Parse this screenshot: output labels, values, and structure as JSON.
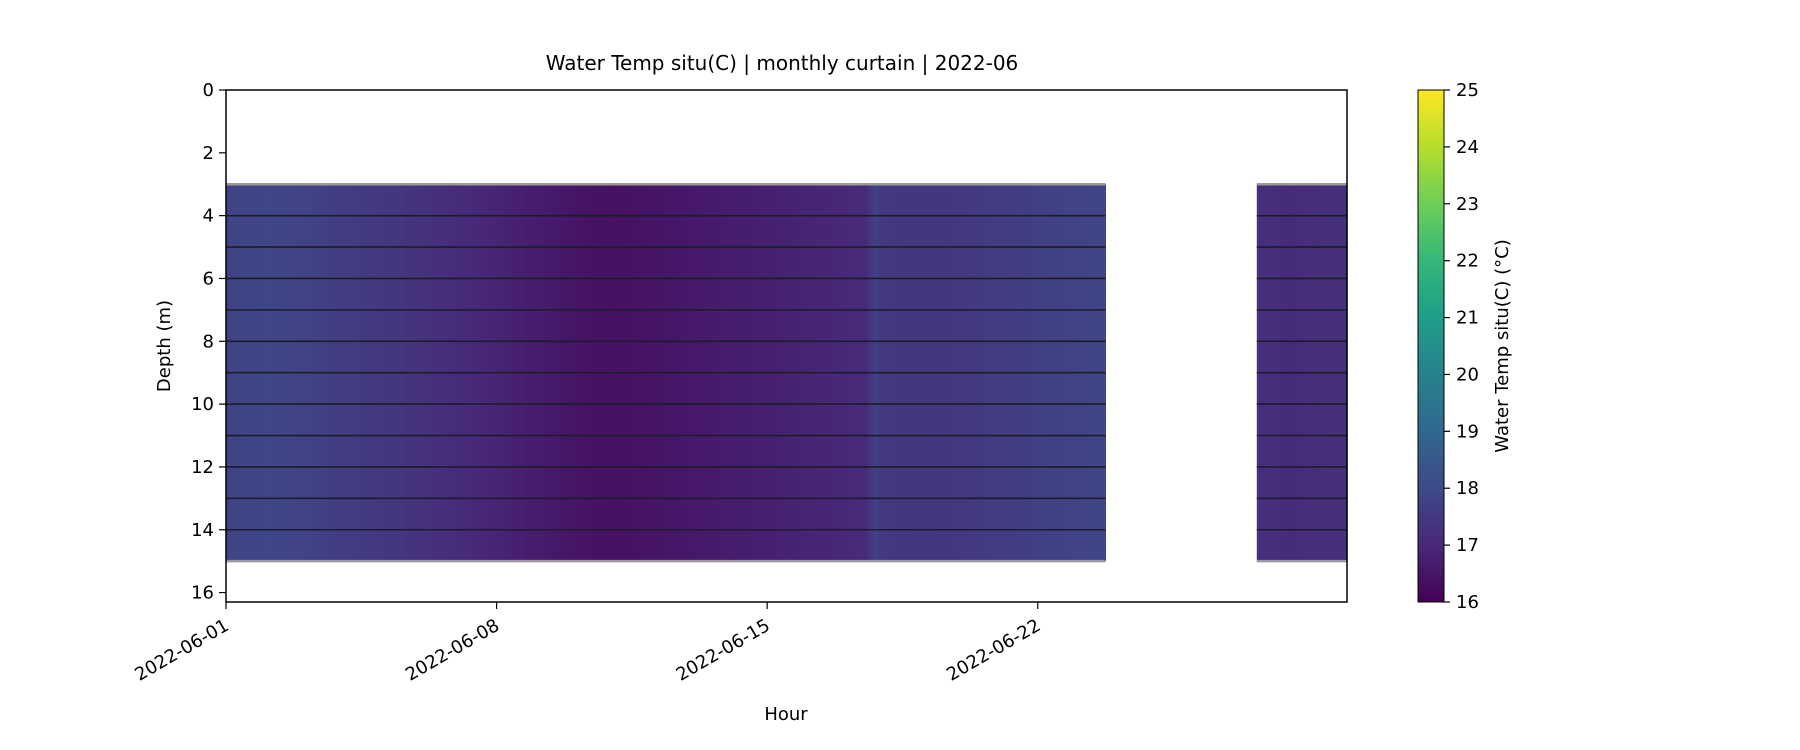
{
  "chart_data": {
    "type": "heatmap",
    "title": "Water Temp situ(C) | monthly curtain | 2022-06",
    "xlabel": "Hour",
    "ylabel": "Depth (m)",
    "xlim": [
      "2022-06-01T00:00",
      "2022-06-30T00:00"
    ],
    "ylim": [
      16.3,
      0
    ],
    "x_ticks": [
      "2022-06-01",
      "2022-06-08",
      "2022-06-15",
      "2022-06-22"
    ],
    "y_ticks": [
      0,
      2,
      4,
      6,
      8,
      10,
      12,
      14,
      16
    ],
    "colorbar": {
      "label": "Water Temp situ(C) (°C)",
      "range": [
        16,
        25
      ],
      "ticks": [
        16,
        17,
        18,
        19,
        20,
        21,
        22,
        23,
        24,
        25
      ],
      "colormap": "viridis"
    },
    "depth_range_m": [
      3,
      15
    ],
    "sensor_depths_m": [
      3,
      4,
      5,
      6,
      7,
      8,
      9,
      10,
      11,
      12,
      13,
      14,
      15
    ],
    "data_segments": [
      {
        "start": "2022-06-01T00:00",
        "end": "2022-06-23T18:00"
      },
      {
        "start": "2022-06-27T16:00",
        "end": "2022-06-30T00:00"
      }
    ],
    "temperature_profile": [
      {
        "date": "2022-06-01T00:00",
        "value": 17.8
      },
      {
        "date": "2022-06-02T00:00",
        "value": 17.9
      },
      {
        "date": "2022-06-03T00:00",
        "value": 17.8
      },
      {
        "date": "2022-06-04T00:00",
        "value": 17.6
      },
      {
        "date": "2022-06-05T00:00",
        "value": 17.5
      },
      {
        "date": "2022-06-06T00:00",
        "value": 17.3
      },
      {
        "date": "2022-06-07T00:00",
        "value": 17.1
      },
      {
        "date": "2022-06-08T00:00",
        "value": 16.9
      },
      {
        "date": "2022-06-09T00:00",
        "value": 16.7
      },
      {
        "date": "2022-06-10T00:00",
        "value": 16.5
      },
      {
        "date": "2022-06-11T00:00",
        "value": 16.4
      },
      {
        "date": "2022-06-12T00:00",
        "value": 16.5
      },
      {
        "date": "2022-06-13T00:00",
        "value": 16.6
      },
      {
        "date": "2022-06-14T00:00",
        "value": 16.7
      },
      {
        "date": "2022-06-15T00:00",
        "value": 16.8
      },
      {
        "date": "2022-06-16T00:00",
        "value": 16.9
      },
      {
        "date": "2022-06-17T00:00",
        "value": 17.0
      },
      {
        "date": "2022-06-17T12:00",
        "value": 17.1
      },
      {
        "date": "2022-06-17T18:00",
        "value": 17.7
      },
      {
        "date": "2022-06-18T00:00",
        "value": 17.5
      },
      {
        "date": "2022-06-19T00:00",
        "value": 17.4
      },
      {
        "date": "2022-06-20T00:00",
        "value": 17.5
      },
      {
        "date": "2022-06-21T00:00",
        "value": 17.6
      },
      {
        "date": "2022-06-22T00:00",
        "value": 17.7
      },
      {
        "date": "2022-06-23T00:00",
        "value": 17.8
      },
      {
        "date": "2022-06-23T18:00",
        "value": 17.9
      },
      {
        "date": "2022-06-27T16:00",
        "value": 17.2
      },
      {
        "date": "2022-06-28T12:00",
        "value": 17.1
      },
      {
        "date": "2022-06-29T12:00",
        "value": 17.2
      },
      {
        "date": "2022-06-30T00:00",
        "value": 17.2
      }
    ]
  }
}
